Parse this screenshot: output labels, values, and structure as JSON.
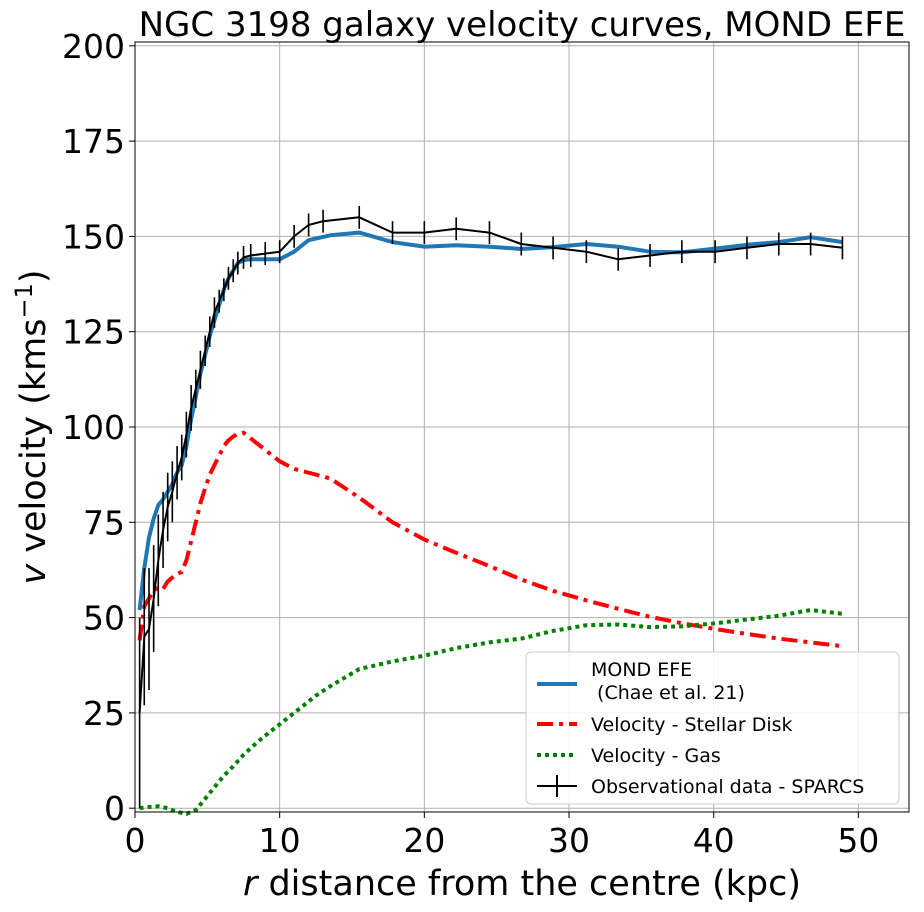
{
  "chart_data": {
    "type": "line",
    "title": "NGC 3198 galaxy velocity curves, MOND EFE",
    "xlabel_italic": "r",
    "xlabel_rest": " distance from the centre (kpc)",
    "ylabel_italic": "v",
    "ylabel_rest": " velocity (kms",
    "ylabel_sup": "−1",
    "ylabel_close": ")",
    "xlim": [
      0,
      53.5
    ],
    "ylim": [
      -1,
      201
    ],
    "xticks": [
      0,
      10,
      20,
      30,
      40,
      50
    ],
    "yticks": [
      0,
      25,
      50,
      75,
      100,
      125,
      150,
      175,
      200
    ],
    "xtick_labels": [
      "0",
      "10",
      "20",
      "30",
      "40",
      "50"
    ],
    "ytick_labels": [
      "0",
      "25",
      "50",
      "75",
      "100",
      "125",
      "150",
      "175",
      "200"
    ],
    "grid": true,
    "legend_position": "lower-right",
    "series": [
      {
        "name": "MOND EFE",
        "legend_lines": [
          "MOND EFE",
          " (Chae et al. 21)"
        ],
        "color": "#1f77b4",
        "style": "solid",
        "x": [
          0.32,
          0.64,
          0.97,
          1.29,
          1.61,
          1.94,
          2.26,
          2.58,
          2.91,
          3.23,
          3.55,
          3.88,
          4.2,
          4.52,
          4.85,
          5.17,
          5.49,
          5.82,
          6.14,
          6.46,
          6.79,
          7.11,
          7.5,
          8.0,
          9.0,
          10.0,
          11.0,
          12.0,
          13.5,
          15.5,
          17.8,
          20.0,
          22.2,
          24.5,
          26.7,
          28.9,
          31.2,
          33.4,
          35.6,
          37.8,
          40.1,
          42.3,
          44.5,
          46.7,
          48.9
        ],
        "values": [
          52,
          63,
          71,
          76,
          79.5,
          81,
          83,
          85,
          88,
          90,
          95,
          102,
          108,
          114,
          119,
          124,
          128,
          132,
          136,
          139,
          141,
          143,
          143.8,
          144,
          144,
          144,
          146,
          149,
          150.3,
          151,
          148.5,
          147.3,
          147.7,
          147.3,
          146.7,
          147.2,
          148,
          147.3,
          146,
          145.8,
          146.8,
          147.8,
          148.5,
          149.8,
          148.5
        ]
      },
      {
        "name": "Velocity - Stellar Disk",
        "color": "#ff0000",
        "style": "dashdot",
        "x": [
          0.32,
          0.64,
          0.97,
          1.29,
          1.61,
          1.94,
          2.26,
          2.58,
          2.91,
          3.23,
          3.55,
          3.88,
          4.2,
          4.52,
          4.85,
          5.17,
          5.49,
          5.82,
          6.14,
          6.46,
          6.79,
          7.11,
          7.5,
          8.0,
          9.0,
          10.0,
          11.0,
          12.0,
          13.5,
          15.5,
          17.8,
          20.0,
          22.2,
          24.5,
          26.7,
          28.9,
          31.2,
          33.4,
          35.6,
          37.8,
          40.1,
          42.3,
          44.5,
          46.7,
          48.9
        ],
        "values": [
          44,
          53,
          55,
          57,
          58,
          57.5,
          59.5,
          60.5,
          61.5,
          62,
          65,
          70,
          75,
          80,
          84,
          87.5,
          90,
          92.5,
          95,
          96.5,
          97.5,
          98.2,
          98.5,
          97,
          94,
          91,
          89,
          88,
          86.5,
          81.5,
          75,
          70.5,
          67,
          63.5,
          60,
          57,
          54.5,
          52.3,
          50.2,
          48.5,
          47,
          45.7,
          44.5,
          43.5,
          42.5
        ]
      },
      {
        "name": "Velocity - Gas",
        "color": "#008000",
        "style": "dotted",
        "x": [
          0.32,
          0.97,
          1.61,
          2.26,
          2.91,
          3.55,
          4.2,
          4.85,
          5.49,
          6.14,
          6.79,
          7.5,
          8.5,
          9.5,
          10.5,
          11.5,
          12.5,
          13.5,
          15.5,
          17.8,
          20.0,
          22.2,
          24.5,
          26.7,
          28.9,
          31.2,
          33.4,
          35.6,
          37.8,
          40.1,
          42.3,
          44.5,
          46.7,
          48.9
        ],
        "values": [
          0,
          0.3,
          0.5,
          0,
          -1,
          -1.5,
          -0.5,
          2.5,
          5.5,
          8.5,
          11,
          14,
          17.5,
          20.5,
          23.5,
          26.5,
          29.5,
          32,
          36.5,
          38.5,
          40,
          42,
          43.5,
          44.5,
          46.5,
          48,
          48.2,
          47.5,
          47.7,
          48.5,
          49.5,
          50.5,
          52,
          51
        ]
      },
      {
        "name": "Observational data - SPARCS",
        "color": "#000000",
        "style": "errorbar",
        "x": [
          0.32,
          0.64,
          0.97,
          1.29,
          1.61,
          1.94,
          2.26,
          2.58,
          2.91,
          3.23,
          3.55,
          3.88,
          4.2,
          4.52,
          4.85,
          5.17,
          5.49,
          5.82,
          6.14,
          6.46,
          6.79,
          7.11,
          7.5,
          8.0,
          9.0,
          10.0,
          11.0,
          12.0,
          13.0,
          15.5,
          17.8,
          20.0,
          22.2,
          24.5,
          26.7,
          28.9,
          31.2,
          33.4,
          35.6,
          37.8,
          40.1,
          42.3,
          44.5,
          46.7,
          48.9
        ],
        "values": [
          25,
          45,
          47,
          55,
          65,
          73,
          79,
          83,
          88,
          92,
          98,
          105,
          110,
          115,
          120,
          125,
          130,
          133,
          136,
          139,
          141,
          143,
          144.5,
          145,
          145.5,
          146,
          150,
          153,
          154,
          155,
          151,
          151,
          152,
          151,
          148,
          147,
          146,
          144,
          145,
          146,
          146,
          147,
          148,
          148,
          147
        ],
        "errors": [
          25,
          18,
          16,
          14,
          12,
          10,
          9,
          8,
          7,
          6,
          6,
          6,
          5,
          5,
          4,
          4,
          4,
          3,
          3,
          3,
          3,
          3,
          3,
          3,
          3,
          3,
          3,
          3,
          3,
          3,
          3,
          3,
          3,
          3,
          3,
          3,
          3,
          3,
          3,
          3,
          3,
          3,
          3,
          3,
          3
        ]
      }
    ]
  }
}
